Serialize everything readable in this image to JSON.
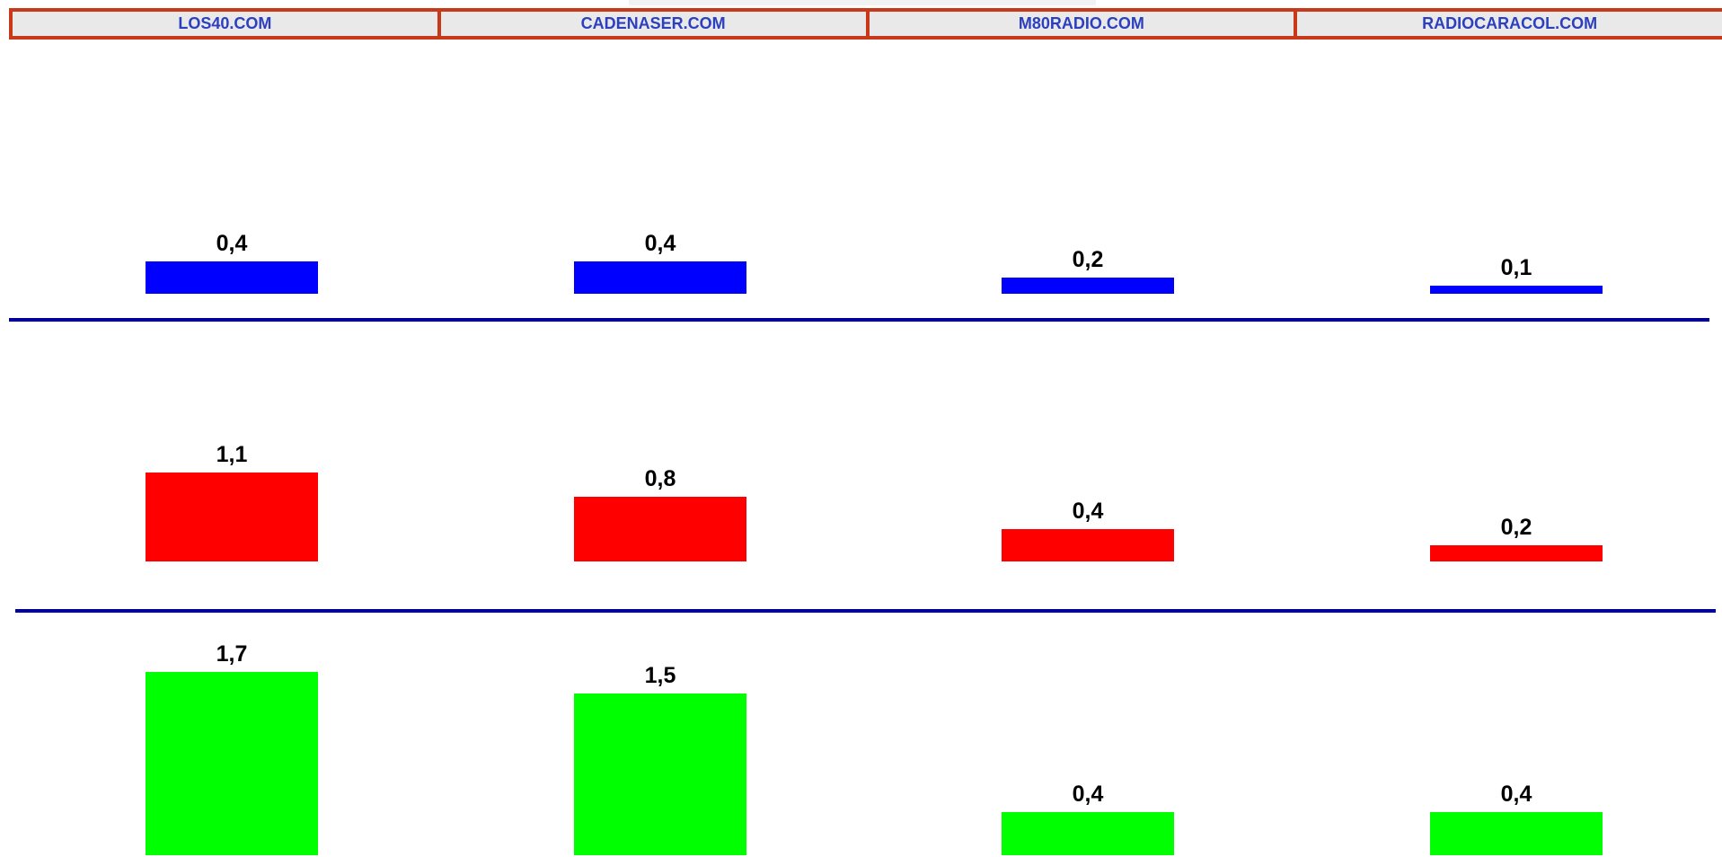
{
  "header": {
    "sites": [
      "LOS40.COM",
      "CADENASER.COM",
      "M80RADIO.COM",
      "RADIOCARACOL.COM"
    ]
  },
  "chart_data": {
    "type": "bar",
    "categories": [
      "LOS40.COM",
      "CADENASER.COM",
      "M80RADIO.COM",
      "RADIOCARACOL.COM"
    ],
    "series": [
      {
        "values": [
          0.4,
          0.4,
          0.2,
          0.1
        ],
        "labels": [
          "0,4",
          "0,4",
          "0,2",
          "0,1"
        ],
        "color": "#0000ff"
      },
      {
        "values": [
          1.1,
          0.8,
          0.4,
          0.2
        ],
        "labels": [
          "1,1",
          "0,8",
          "0,4",
          "0,2"
        ],
        "color": "#ff0000"
      },
      {
        "values": [
          1.7,
          1.5,
          0.4,
          0.4
        ],
        "labels": [
          "1,7",
          "1,5",
          "0,4",
          "0,4"
        ],
        "color": "#00ff00"
      }
    ],
    "divider_color": "#000099",
    "grid": false,
    "legend": "none"
  }
}
